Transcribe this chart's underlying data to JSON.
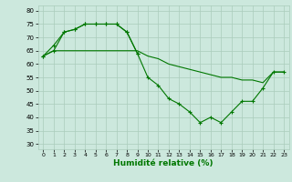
{
  "xlabel": "Humidité relative (%)",
  "bg_color": "#cce8dd",
  "grid_color": "#aaccbb",
  "line_color": "#007700",
  "xlim": [
    -0.5,
    23.5
  ],
  "ylim": [
    28,
    82
  ],
  "yticks": [
    30,
    35,
    40,
    45,
    50,
    55,
    60,
    65,
    70,
    75,
    80
  ],
  "xticks": [
    0,
    1,
    2,
    3,
    4,
    5,
    6,
    7,
    8,
    9,
    10,
    11,
    12,
    13,
    14,
    15,
    16,
    17,
    18,
    19,
    20,
    21,
    22,
    23
  ],
  "line1_x": [
    0,
    1,
    2,
    3,
    4,
    5,
    6,
    7,
    8,
    9,
    10,
    11,
    12,
    13,
    14,
    15,
    16,
    17,
    18,
    19,
    20,
    21,
    22,
    23
  ],
  "line1_y": [
    63,
    67,
    72,
    73,
    75,
    75,
    75,
    75,
    72,
    64,
    55,
    52,
    47,
    45,
    42,
    38,
    40,
    38,
    42,
    46,
    46,
    51,
    57,
    57
  ],
  "line2_x": [
    0,
    1,
    2,
    3,
    4,
    5,
    6,
    7,
    8,
    9,
    10,
    11,
    12,
    13,
    14,
    15,
    16,
    17,
    18,
    19,
    20,
    21,
    22,
    23
  ],
  "line2_y": [
    63,
    65,
    65,
    65,
    65,
    65,
    65,
    65,
    65,
    65,
    63,
    62,
    60,
    59,
    58,
    57,
    56,
    55,
    55,
    54,
    54,
    53,
    57,
    57
  ],
  "line3_x": [
    0,
    1,
    2,
    3,
    4,
    5,
    6,
    7,
    8,
    9
  ],
  "line3_y": [
    63,
    65,
    72,
    73,
    75,
    75,
    75,
    75,
    72,
    64
  ]
}
